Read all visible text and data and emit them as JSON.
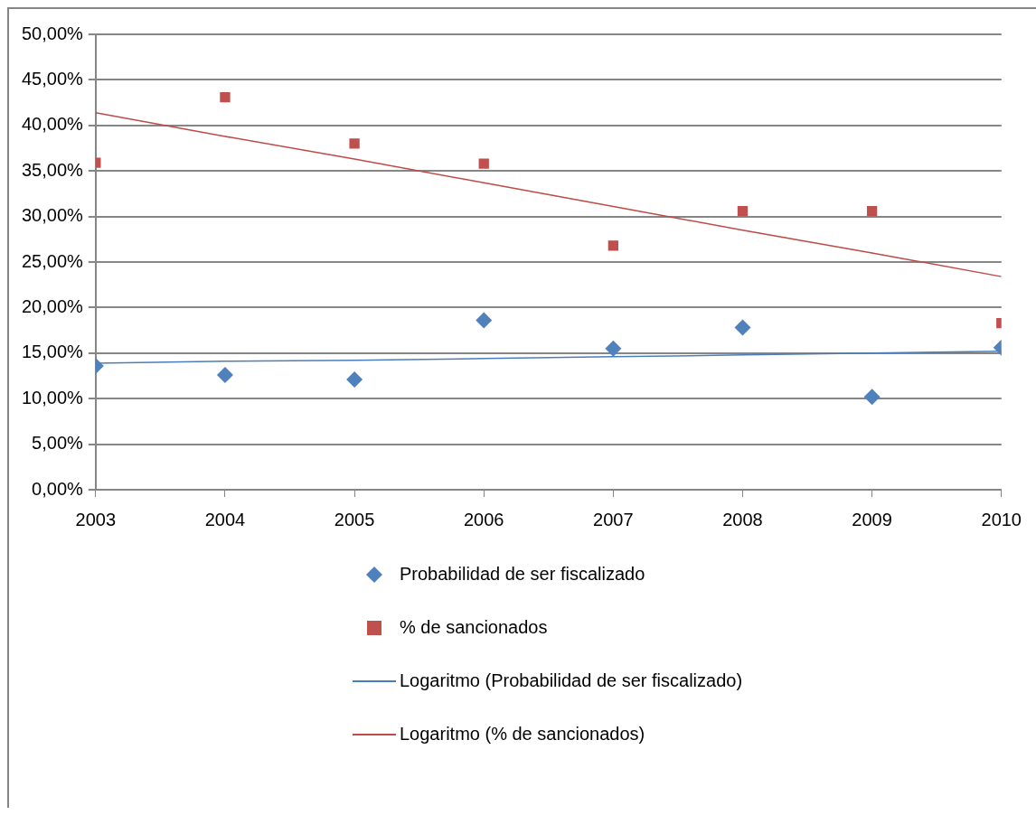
{
  "chart_data": {
    "type": "scatter",
    "x": [
      2003,
      2004,
      2005,
      2006,
      2007,
      2008,
      2009,
      2010
    ],
    "series": [
      {
        "name": "Probabilidad de ser fiscalizado",
        "type": "scatter",
        "color": "#4f81bd",
        "marker": "diamond",
        "values": [
          13.6,
          12.6,
          12.1,
          18.6,
          15.5,
          17.8,
          10.2,
          15.6
        ]
      },
      {
        "name": "% de sancionados",
        "type": "scatter",
        "color": "#c0504d",
        "marker": "square",
        "values": [
          35.9,
          43.1,
          38.0,
          35.8,
          26.8,
          30.6,
          30.6,
          18.3
        ]
      },
      {
        "name": "Logaritmo (Probabilidad de ser fiscalizado)",
        "type": "line",
        "color": "#4a7ebb",
        "marker": "none",
        "line_style": "solid",
        "values": [
          13.9,
          14.1,
          14.2,
          14.4,
          14.6,
          14.8,
          15.0,
          15.2
        ]
      },
      {
        "name": "Logaritmo (% de sancionados)",
        "type": "line",
        "color": "#be4b48",
        "marker": "none",
        "line_style": "solid",
        "values": [
          41.4,
          38.8,
          36.3,
          33.7,
          31.1,
          28.5,
          26.0,
          23.4
        ]
      }
    ],
    "xlim": [
      2003,
      2010
    ],
    "xticks": [
      2003,
      2004,
      2005,
      2006,
      2007,
      2008,
      2009,
      2010
    ],
    "ylim": [
      0,
      50
    ],
    "yticks": [
      {
        "value": 0,
        "label": "0,00%"
      },
      {
        "value": 5,
        "label": "5,00%"
      },
      {
        "value": 10,
        "label": "10,00%"
      },
      {
        "value": 15,
        "label": "15,00%"
      },
      {
        "value": 20,
        "label": "20,00%"
      },
      {
        "value": 25,
        "label": "25,00%"
      },
      {
        "value": 30,
        "label": "30,00%"
      },
      {
        "value": 35,
        "label": "35,00%"
      },
      {
        "value": 40,
        "label": "40,00%"
      },
      {
        "value": 45,
        "label": "45,00%"
      },
      {
        "value": 50,
        "label": "50,00%"
      }
    ],
    "grid": "y",
    "legend": "bottom"
  }
}
